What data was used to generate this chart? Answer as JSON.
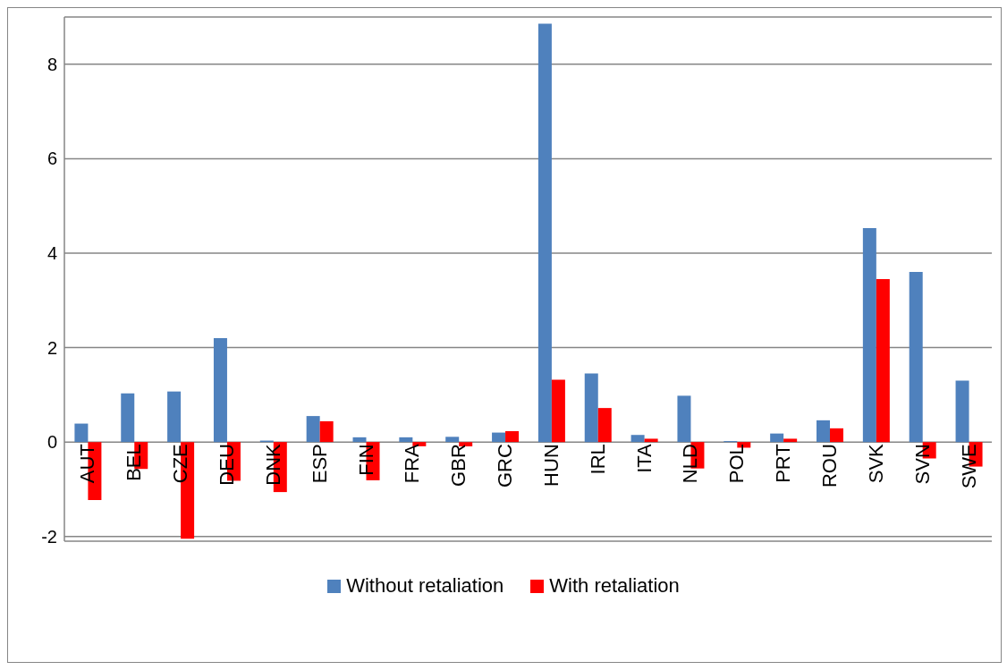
{
  "chart_data": {
    "type": "bar",
    "categories": [
      "AUT",
      "BEL",
      "CZE",
      "DEU",
      "DNK",
      "ESP",
      "FIN",
      "FRA",
      "GBR",
      "GRC",
      "HUN",
      "IRL",
      "ITA",
      "NLD",
      "POL",
      "PRT",
      "ROU",
      "SVK",
      "SVN",
      "SWE"
    ],
    "series": [
      {
        "name": "Without retaliation",
        "color": "#4f81bd",
        "values": [
          0.39,
          1.03,
          1.07,
          2.2,
          0.03,
          0.55,
          0.1,
          0.1,
          0.11,
          0.2,
          8.86,
          1.45,
          0.15,
          0.98,
          0.02,
          0.18,
          0.46,
          4.53,
          3.6,
          1.3
        ]
      },
      {
        "name": "With retaliation",
        "color": "#ff0000",
        "values": [
          -1.23,
          -0.57,
          -2.05,
          -0.82,
          -1.06,
          0.44,
          -0.81,
          -0.09,
          -0.09,
          0.23,
          1.32,
          0.72,
          0.07,
          -0.56,
          -0.12,
          0.07,
          0.29,
          3.45,
          -0.35,
          -0.52
        ]
      }
    ],
    "ylim": [
      -2.1,
      9
    ],
    "yticks": [
      -2,
      0,
      2,
      4,
      6,
      8
    ],
    "grid": "y",
    "legend": "bottom"
  }
}
